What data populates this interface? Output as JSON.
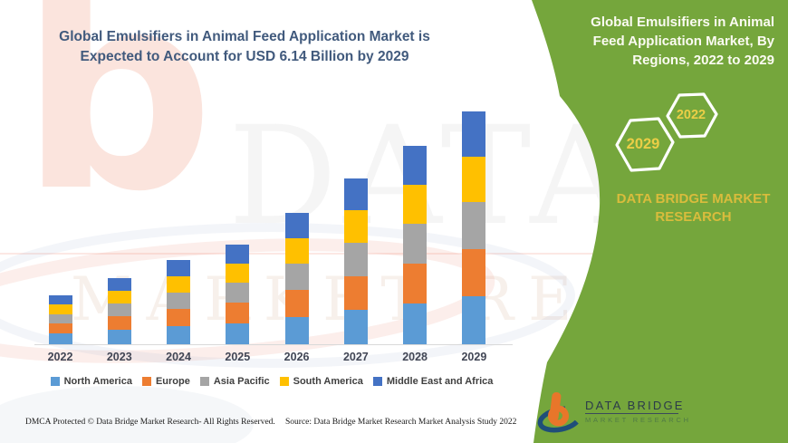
{
  "left": {
    "title": "Global Emulsifiers in Animal Feed Application Market is Expected to Account for USD 6.14 Billion by 2029",
    "title_color": "#415A7D",
    "footer_left": "DMCA Protected © Data Bridge Market Research- All Rights Reserved.",
    "footer_source": "Source: Data Bridge Market Research Market Analysis Study 2022",
    "watermark_b": "b",
    "watermark_text1": "DATA BRI",
    "watermark_text2": "MARKET RESE"
  },
  "panel": {
    "title": "Global Emulsifiers in Animal Feed Application Market, By Regions, 2022 to 2029",
    "hex_large": "2029",
    "hex_small": "2022",
    "brand_text": "DATA BRIDGE MARKET RESEARCH",
    "colors": {
      "green": "#75A63C",
      "gold": "#EBCE46",
      "brand_gold": "#D9BC3C",
      "hex_outline": "#FFFFFF"
    }
  },
  "logo": {
    "name": "DATA BRIDGE",
    "subtitle": "MARKET RESEARCH",
    "orange": "#E8762A",
    "navy": "#1F4E79"
  },
  "chart_data": {
    "type": "bar",
    "stacked": true,
    "unit": "USD Billion",
    "title": "Global Emulsifiers in Animal Feed Application Market, By Regions, 2022 to 2029",
    "xlabel": "",
    "ylabel": "",
    "grid": false,
    "y_axis_visible": false,
    "legend_position": "bottom",
    "ylim": [
      0,
      6.5
    ],
    "categories": [
      "2022",
      "2023",
      "2024",
      "2025",
      "2026",
      "2027",
      "2028",
      "2029"
    ],
    "series": [
      {
        "name": "North America",
        "color": "#5B9BD5",
        "values": [
          0.28,
          0.38,
          0.47,
          0.56,
          0.73,
          0.9,
          1.08,
          1.26
        ]
      },
      {
        "name": "Europe",
        "color": "#ED7D31",
        "values": [
          0.27,
          0.36,
          0.45,
          0.54,
          0.71,
          0.88,
          1.06,
          1.24
        ]
      },
      {
        "name": "Asia Pacific",
        "color": "#A5A5A5",
        "values": [
          0.25,
          0.34,
          0.44,
          0.53,
          0.7,
          0.88,
          1.06,
          1.25
        ]
      },
      {
        "name": "South America",
        "color": "#FFC000",
        "values": [
          0.26,
          0.34,
          0.43,
          0.51,
          0.68,
          0.86,
          1.03,
          1.2
        ]
      },
      {
        "name": "Middle East and Africa",
        "color": "#4472C4",
        "values": [
          0.24,
          0.33,
          0.42,
          0.5,
          0.68,
          0.85,
          1.02,
          1.19
        ]
      }
    ],
    "totals": [
      1.3,
      1.75,
      2.21,
      2.64,
      3.5,
      4.37,
      5.25,
      6.14
    ]
  }
}
